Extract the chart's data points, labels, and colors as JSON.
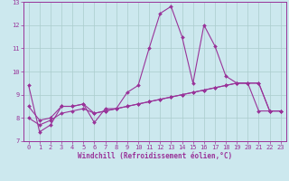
{
  "xlabel": "Windchill (Refroidissement éolien,°C)",
  "ylabel": "",
  "bg_color": "#cce8ee",
  "line_color": "#993399",
  "grid_color": "#aacccc",
  "xlim": [
    -0.5,
    23.5
  ],
  "ylim": [
    7,
    13
  ],
  "xticks": [
    0,
    1,
    2,
    3,
    4,
    5,
    6,
    7,
    8,
    9,
    10,
    11,
    12,
    13,
    14,
    15,
    16,
    17,
    18,
    19,
    20,
    21,
    22,
    23
  ],
  "yticks": [
    7,
    8,
    9,
    10,
    11,
    12,
    13
  ],
  "series1_x": [
    0,
    1,
    2,
    3,
    4,
    5,
    6,
    7,
    8,
    9,
    10,
    11,
    12,
    13,
    14,
    15,
    16,
    17,
    18,
    19,
    20,
    21,
    22,
    23
  ],
  "series1_y": [
    9.4,
    7.4,
    7.7,
    8.5,
    8.5,
    8.6,
    7.8,
    8.4,
    8.4,
    9.1,
    9.4,
    11.0,
    12.5,
    12.8,
    11.5,
    9.5,
    12.0,
    11.1,
    9.8,
    9.5,
    9.5,
    8.3,
    8.3,
    8.3
  ],
  "series2_x": [
    0,
    1,
    2,
    3,
    4,
    5,
    6,
    7,
    8,
    9,
    10,
    11,
    12,
    13,
    14,
    15,
    16,
    17,
    18,
    19,
    20,
    21,
    22,
    23
  ],
  "series2_y": [
    8.5,
    7.9,
    8.0,
    8.5,
    8.5,
    8.6,
    8.2,
    8.3,
    8.4,
    8.5,
    8.6,
    8.7,
    8.8,
    8.9,
    9.0,
    9.1,
    9.2,
    9.3,
    9.4,
    9.5,
    9.5,
    9.5,
    8.3,
    8.3
  ],
  "series3_x": [
    0,
    1,
    2,
    3,
    4,
    5,
    6,
    7,
    8,
    9,
    10,
    11,
    12,
    13,
    14,
    15,
    16,
    17,
    18,
    19,
    20,
    21,
    22,
    23
  ],
  "series3_y": [
    8.0,
    7.7,
    7.9,
    8.2,
    8.3,
    8.4,
    8.2,
    8.3,
    8.4,
    8.5,
    8.6,
    8.7,
    8.8,
    8.9,
    9.0,
    9.1,
    9.2,
    9.3,
    9.4,
    9.5,
    9.5,
    9.5,
    8.3,
    8.3
  ]
}
